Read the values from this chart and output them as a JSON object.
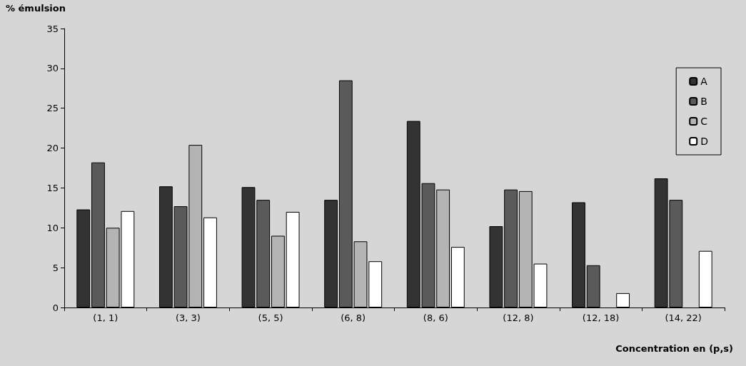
{
  "chart_data": {
    "type": "bar",
    "ylabel": "% émulsion",
    "xlabel": "Concentration en (p,s)",
    "categories": [
      "(1, 1)",
      "(3, 3)",
      "(5, 5)",
      "(6, 8)",
      "(8, 6)",
      "(12, 8)",
      "(12, 18)",
      "(14, 22)"
    ],
    "series": [
      {
        "name": "A",
        "color": "#333333",
        "values": [
          12.3,
          15.2,
          15.1,
          13.5,
          23.4,
          10.2,
          13.2,
          16.2
        ]
      },
      {
        "name": "B",
        "color": "#5a5a5a",
        "values": [
          18.2,
          12.7,
          13.5,
          28.5,
          15.6,
          14.8,
          5.3,
          13.5
        ]
      },
      {
        "name": "C",
        "color": "#b4b4b4",
        "values": [
          10,
          20.4,
          9,
          8.3,
          14.8,
          14.6,
          null,
          null
        ]
      },
      {
        "name": "D",
        "color": "#ffffff",
        "values": [
          12.1,
          11.3,
          12,
          5.8,
          7.6,
          5.5,
          1.8,
          7.1
        ]
      }
    ],
    "ylim": [
      0,
      35
    ],
    "yticks": [
      0,
      5,
      10,
      15,
      20,
      25,
      30,
      35
    ],
    "grid": false,
    "legend": "top right"
  }
}
